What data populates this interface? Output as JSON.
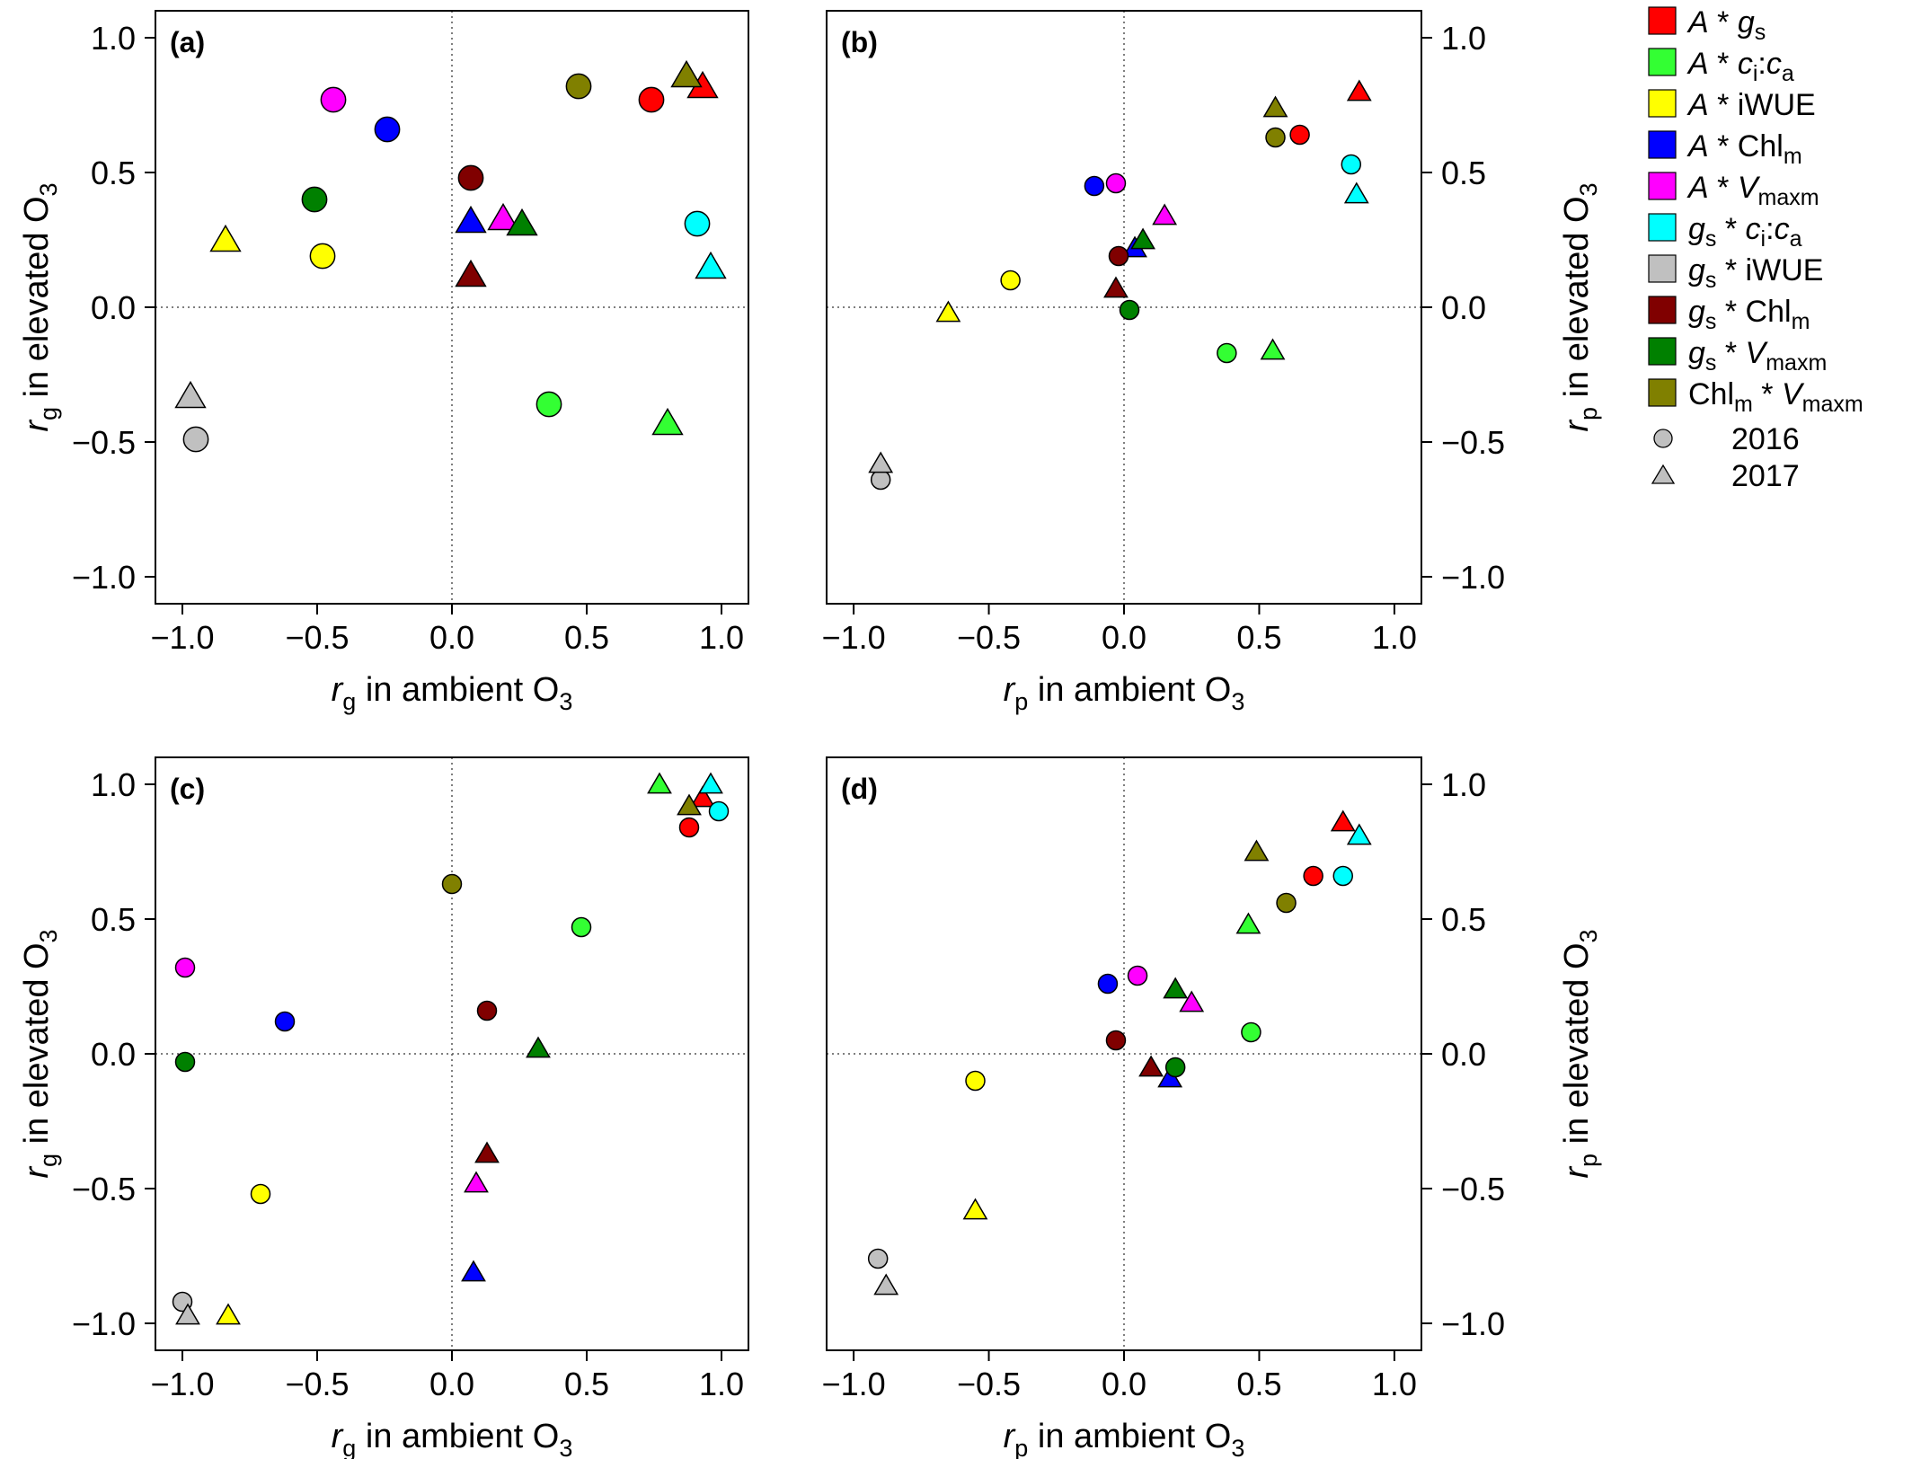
{
  "colors": {
    "A_gs": "#ff0000",
    "A_cica": "#33ff33",
    "A_iWUE": "#ffff00",
    "A_Chlm": "#0000ff",
    "A_Vmaxm": "#ff00ff",
    "gs_cica": "#00ffff",
    "gs_iWUE": "#c0c0c0",
    "gs_Chlm": "#800000",
    "gs_Vmaxm": "#008000",
    "Chlm_Vmaxm": "#808000"
  },
  "legend": {
    "series": [
      {
        "key": "A_gs",
        "parts": [
          {
            "t": "A",
            "i": true
          },
          {
            "t": " * "
          },
          {
            "t": "g",
            "i": true
          },
          {
            "t": "s",
            "sub": true
          }
        ]
      },
      {
        "key": "A_cica",
        "parts": [
          {
            "t": "A",
            "i": true
          },
          {
            "t": " * "
          },
          {
            "t": "c",
            "i": true
          },
          {
            "t": "i",
            "sub": true
          },
          {
            "t": ":"
          },
          {
            "t": "c",
            "i": true
          },
          {
            "t": "a",
            "sub": true
          }
        ]
      },
      {
        "key": "A_iWUE",
        "parts": [
          {
            "t": "A",
            "i": true
          },
          {
            "t": " * iWUE"
          }
        ]
      },
      {
        "key": "A_Chlm",
        "parts": [
          {
            "t": "A",
            "i": true
          },
          {
            "t": " * Chl"
          },
          {
            "t": "m",
            "sub": true
          }
        ]
      },
      {
        "key": "A_Vmaxm",
        "parts": [
          {
            "t": "A",
            "i": true
          },
          {
            "t": " * "
          },
          {
            "t": "V",
            "i": true
          },
          {
            "t": "maxm",
            "sub": true
          }
        ]
      },
      {
        "key": "gs_cica",
        "parts": [
          {
            "t": "g",
            "i": true
          },
          {
            "t": "s",
            "sub": true
          },
          {
            "t": " * "
          },
          {
            "t": "c",
            "i": true
          },
          {
            "t": "i",
            "sub": true
          },
          {
            "t": ":"
          },
          {
            "t": "c",
            "i": true
          },
          {
            "t": "a",
            "sub": true
          }
        ]
      },
      {
        "key": "gs_iWUE",
        "parts": [
          {
            "t": "g",
            "i": true
          },
          {
            "t": "s",
            "sub": true
          },
          {
            "t": " * iWUE"
          }
        ]
      },
      {
        "key": "gs_Chlm",
        "parts": [
          {
            "t": "g",
            "i": true
          },
          {
            "t": "s",
            "sub": true
          },
          {
            "t": " * Chl"
          },
          {
            "t": "m",
            "sub": true
          }
        ]
      },
      {
        "key": "gs_Vmaxm",
        "parts": [
          {
            "t": "g",
            "i": true
          },
          {
            "t": "s",
            "sub": true
          },
          {
            "t": " * "
          },
          {
            "t": "V",
            "i": true
          },
          {
            "t": "maxm",
            "sub": true
          }
        ]
      },
      {
        "key": "Chlm_Vmaxm",
        "parts": [
          {
            "t": "Chl"
          },
          {
            "t": "m",
            "sub": true
          },
          {
            "t": " * "
          },
          {
            "t": "V",
            "i": true
          },
          {
            "t": "maxm",
            "sub": true
          }
        ]
      }
    ],
    "years": [
      {
        "label": "2016",
        "marker": "circle"
      },
      {
        "label": "2017",
        "marker": "triangle"
      }
    ]
  },
  "chart_data": [
    {
      "type": "scatter",
      "panel_label": "(a)",
      "xlabel": {
        "pre": "r",
        "sub": "g",
        "post": " in ambient O",
        "post_sub": "3"
      },
      "ylabel": {
        "pre": "r",
        "sub": "g",
        "post": " in elevated O",
        "post_sub": "3"
      },
      "xlim": [
        -1.1,
        1.1
      ],
      "ylim": [
        -1.1,
        1.1
      ],
      "xticks": [
        -1.0,
        -0.5,
        0.0,
        0.5,
        1.0
      ],
      "yticks": [
        -1.0,
        -0.5,
        0.0,
        0.5,
        1.0
      ],
      "tick_labels": [
        "−1.0",
        "−0.5",
        "0.0",
        "0.5",
        "1.0"
      ],
      "y_axis_side": "left",
      "marker_scale": 1.3,
      "points": [
        {
          "s": "A_gs",
          "m": "circle",
          "x": 0.74,
          "y": 0.77
        },
        {
          "s": "A_gs",
          "m": "triangle",
          "x": 0.93,
          "y": 0.82
        },
        {
          "s": "A_cica",
          "m": "circle",
          "x": 0.36,
          "y": -0.36
        },
        {
          "s": "A_cica",
          "m": "triangle",
          "x": 0.8,
          "y": -0.43
        },
        {
          "s": "A_iWUE",
          "m": "circle",
          "x": -0.48,
          "y": 0.19
        },
        {
          "s": "A_iWUE",
          "m": "triangle",
          "x": -0.84,
          "y": 0.25
        },
        {
          "s": "A_Chlm",
          "m": "circle",
          "x": -0.24,
          "y": 0.66
        },
        {
          "s": "A_Chlm",
          "m": "triangle",
          "x": 0.07,
          "y": 0.32
        },
        {
          "s": "A_Vmaxm",
          "m": "circle",
          "x": -0.44,
          "y": 0.77
        },
        {
          "s": "A_Vmaxm",
          "m": "triangle",
          "x": 0.19,
          "y": 0.33
        },
        {
          "s": "gs_cica",
          "m": "circle",
          "x": 0.91,
          "y": 0.31
        },
        {
          "s": "gs_cica",
          "m": "triangle",
          "x": 0.96,
          "y": 0.15
        },
        {
          "s": "gs_iWUE",
          "m": "circle",
          "x": -0.95,
          "y": -0.49
        },
        {
          "s": "gs_iWUE",
          "m": "triangle",
          "x": -0.97,
          "y": -0.33
        },
        {
          "s": "gs_Chlm",
          "m": "circle",
          "x": 0.07,
          "y": 0.48
        },
        {
          "s": "gs_Chlm",
          "m": "triangle",
          "x": 0.07,
          "y": 0.12
        },
        {
          "s": "gs_Vmaxm",
          "m": "circle",
          "x": -0.51,
          "y": 0.4
        },
        {
          "s": "gs_Vmaxm",
          "m": "triangle",
          "x": 0.26,
          "y": 0.31
        },
        {
          "s": "Chlm_Vmaxm",
          "m": "circle",
          "x": 0.47,
          "y": 0.82
        },
        {
          "s": "Chlm_Vmaxm",
          "m": "triangle",
          "x": 0.87,
          "y": 0.86
        }
      ]
    },
    {
      "type": "scatter",
      "panel_label": "(b)",
      "xlabel": {
        "pre": "r",
        "sub": "p",
        "post": " in ambient O",
        "post_sub": "3"
      },
      "ylabel": {
        "pre": "r",
        "sub": "p",
        "post": " in elevated O",
        "post_sub": "3"
      },
      "xlim": [
        -1.1,
        1.1
      ],
      "ylim": [
        -1.1,
        1.1
      ],
      "xticks": [
        -1.0,
        -0.5,
        0.0,
        0.5,
        1.0
      ],
      "yticks": [
        -1.0,
        -0.5,
        0.0,
        0.5,
        1.0
      ],
      "tick_labels": [
        "−1.0",
        "−0.5",
        "0.0",
        "0.5",
        "1.0"
      ],
      "y_axis_side": "right",
      "marker_scale": 1.0,
      "points": [
        {
          "s": "A_gs",
          "m": "circle",
          "x": 0.65,
          "y": 0.64
        },
        {
          "s": "A_gs",
          "m": "triangle",
          "x": 0.87,
          "y": 0.8
        },
        {
          "s": "A_cica",
          "m": "circle",
          "x": 0.38,
          "y": -0.17
        },
        {
          "s": "A_cica",
          "m": "triangle",
          "x": 0.55,
          "y": -0.16
        },
        {
          "s": "A_iWUE",
          "m": "circle",
          "x": -0.42,
          "y": 0.1
        },
        {
          "s": "A_iWUE",
          "m": "triangle",
          "x": -0.65,
          "y": -0.02
        },
        {
          "s": "A_Chlm",
          "m": "circle",
          "x": -0.11,
          "y": 0.45
        },
        {
          "s": "A_Chlm",
          "m": "triangle",
          "x": 0.04,
          "y": 0.22
        },
        {
          "s": "A_Vmaxm",
          "m": "circle",
          "x": -0.03,
          "y": 0.46
        },
        {
          "s": "A_Vmaxm",
          "m": "triangle",
          "x": 0.15,
          "y": 0.34
        },
        {
          "s": "gs_cica",
          "m": "circle",
          "x": 0.84,
          "y": 0.53
        },
        {
          "s": "gs_cica",
          "m": "triangle",
          "x": 0.86,
          "y": 0.42
        },
        {
          "s": "gs_iWUE",
          "m": "circle",
          "x": -0.9,
          "y": -0.64
        },
        {
          "s": "gs_iWUE",
          "m": "triangle",
          "x": -0.9,
          "y": -0.58
        },
        {
          "s": "gs_Chlm",
          "m": "circle",
          "x": -0.02,
          "y": 0.19
        },
        {
          "s": "gs_Chlm",
          "m": "triangle",
          "x": -0.03,
          "y": 0.07
        },
        {
          "s": "gs_Vmaxm",
          "m": "circle",
          "x": 0.02,
          "y": -0.01
        },
        {
          "s": "gs_Vmaxm",
          "m": "triangle",
          "x": 0.07,
          "y": 0.25
        },
        {
          "s": "Chlm_Vmaxm",
          "m": "circle",
          "x": 0.56,
          "y": 0.63
        },
        {
          "s": "Chlm_Vmaxm",
          "m": "triangle",
          "x": 0.56,
          "y": 0.74
        }
      ]
    },
    {
      "type": "scatter",
      "panel_label": "(c)",
      "xlabel": {
        "pre": "r",
        "sub": "g",
        "post": " in ambient O",
        "post_sub": "3"
      },
      "ylabel": {
        "pre": "r",
        "sub": "g",
        "post": " in elevated O",
        "post_sub": "3"
      },
      "xlim": [
        -1.1,
        1.1
      ],
      "ylim": [
        -1.1,
        1.1
      ],
      "xticks": [
        -1.0,
        -0.5,
        0.0,
        0.5,
        1.0
      ],
      "yticks": [
        -1.0,
        -0.5,
        0.0,
        0.5,
        1.0
      ],
      "tick_labels": [
        "−1.0",
        "−0.5",
        "0.0",
        "0.5",
        "1.0"
      ],
      "y_axis_side": "left",
      "marker_scale": 1.0,
      "points": [
        {
          "s": "A_gs",
          "m": "circle",
          "x": 0.88,
          "y": 0.84
        },
        {
          "s": "A_gs",
          "m": "triangle",
          "x": 0.93,
          "y": 0.95
        },
        {
          "s": "A_cica",
          "m": "circle",
          "x": 0.48,
          "y": 0.47
        },
        {
          "s": "A_cica",
          "m": "triangle",
          "x": 0.77,
          "y": 1.0
        },
        {
          "s": "A_iWUE",
          "m": "circle",
          "x": -0.71,
          "y": -0.52
        },
        {
          "s": "A_iWUE",
          "m": "triangle",
          "x": -0.83,
          "y": -0.97
        },
        {
          "s": "A_Chlm",
          "m": "circle",
          "x": -0.62,
          "y": 0.12
        },
        {
          "s": "A_Chlm",
          "m": "triangle",
          "x": 0.08,
          "y": -0.81
        },
        {
          "s": "A_Vmaxm",
          "m": "circle",
          "x": -0.99,
          "y": 0.32
        },
        {
          "s": "A_Vmaxm",
          "m": "triangle",
          "x": 0.09,
          "y": -0.48
        },
        {
          "s": "gs_cica",
          "m": "circle",
          "x": 0.99,
          "y": 0.9
        },
        {
          "s": "gs_cica",
          "m": "triangle",
          "x": 0.96,
          "y": 1.0
        },
        {
          "s": "gs_iWUE",
          "m": "circle",
          "x": -1.0,
          "y": -0.92
        },
        {
          "s": "gs_iWUE",
          "m": "triangle",
          "x": -0.98,
          "y": -0.97
        },
        {
          "s": "gs_Chlm",
          "m": "circle",
          "x": 0.13,
          "y": 0.16
        },
        {
          "s": "gs_Chlm",
          "m": "triangle",
          "x": 0.13,
          "y": -0.37
        },
        {
          "s": "gs_Vmaxm",
          "m": "circle",
          "x": -0.99,
          "y": -0.03
        },
        {
          "s": "gs_Vmaxm",
          "m": "triangle",
          "x": 0.32,
          "y": 0.02
        },
        {
          "s": "Chlm_Vmaxm",
          "m": "circle",
          "x": 0.0,
          "y": 0.63
        },
        {
          "s": "Chlm_Vmaxm",
          "m": "triangle",
          "x": 0.88,
          "y": 0.92
        }
      ]
    },
    {
      "type": "scatter",
      "panel_label": "(d)",
      "xlabel": {
        "pre": "r",
        "sub": "p",
        "post": " in ambient O",
        "post_sub": "3"
      },
      "ylabel": {
        "pre": "r",
        "sub": "p",
        "post": " in elevated O",
        "post_sub": "3"
      },
      "xlim": [
        -1.1,
        1.1
      ],
      "ylim": [
        -1.1,
        1.1
      ],
      "xticks": [
        -1.0,
        -0.5,
        0.0,
        0.5,
        1.0
      ],
      "yticks": [
        -1.0,
        -0.5,
        0.0,
        0.5,
        1.0
      ],
      "tick_labels": [
        "−1.0",
        "−0.5",
        "0.0",
        "0.5",
        "1.0"
      ],
      "y_axis_side": "right",
      "marker_scale": 1.0,
      "points": [
        {
          "s": "A_gs",
          "m": "circle",
          "x": 0.7,
          "y": 0.66
        },
        {
          "s": "A_gs",
          "m": "triangle",
          "x": 0.81,
          "y": 0.86
        },
        {
          "s": "A_cica",
          "m": "circle",
          "x": 0.47,
          "y": 0.08
        },
        {
          "s": "A_cica",
          "m": "triangle",
          "x": 0.46,
          "y": 0.48
        },
        {
          "s": "A_iWUE",
          "m": "circle",
          "x": -0.55,
          "y": -0.1
        },
        {
          "s": "A_iWUE",
          "m": "triangle",
          "x": -0.55,
          "y": -0.58
        },
        {
          "s": "A_Chlm",
          "m": "circle",
          "x": -0.06,
          "y": 0.26
        },
        {
          "s": "A_Chlm",
          "m": "triangle",
          "x": 0.17,
          "y": -0.09
        },
        {
          "s": "A_Vmaxm",
          "m": "circle",
          "x": 0.05,
          "y": 0.29
        },
        {
          "s": "A_Vmaxm",
          "m": "triangle",
          "x": 0.25,
          "y": 0.19
        },
        {
          "s": "gs_cica",
          "m": "circle",
          "x": 0.81,
          "y": 0.66
        },
        {
          "s": "gs_cica",
          "m": "triangle",
          "x": 0.87,
          "y": 0.81
        },
        {
          "s": "gs_iWUE",
          "m": "circle",
          "x": -0.91,
          "y": -0.76
        },
        {
          "s": "gs_iWUE",
          "m": "triangle",
          "x": -0.88,
          "y": -0.86
        },
        {
          "s": "gs_Chlm",
          "m": "circle",
          "x": -0.03,
          "y": 0.05
        },
        {
          "s": "gs_Chlm",
          "m": "triangle",
          "x": 0.1,
          "y": -0.05
        },
        {
          "s": "gs_Vmaxm",
          "m": "circle",
          "x": 0.19,
          "y": -0.05
        },
        {
          "s": "gs_Vmaxm",
          "m": "triangle",
          "x": 0.19,
          "y": 0.24
        },
        {
          "s": "Chlm_Vmaxm",
          "m": "circle",
          "x": 0.6,
          "y": 0.56
        },
        {
          "s": "Chlm_Vmaxm",
          "m": "triangle",
          "x": 0.49,
          "y": 0.75
        }
      ]
    }
  ]
}
